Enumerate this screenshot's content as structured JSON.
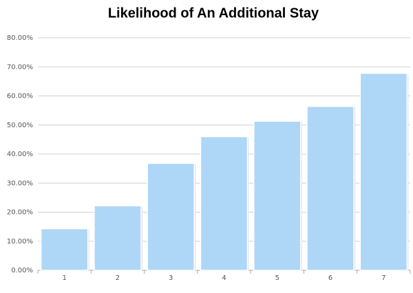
{
  "chart_data": {
    "type": "bar",
    "title": "Likelihood of An Additional Stay",
    "categories": [
      "1",
      "2",
      "3",
      "4",
      "5",
      "6",
      "7"
    ],
    "values": [
      14.3,
      22.2,
      36.8,
      46,
      51.3,
      56.4,
      67.8
    ],
    "color": "#aed6f7",
    "ylim": [
      0,
      80
    ],
    "yticks": [
      {
        "value": 0,
        "label": "0.00%"
      },
      {
        "value": 10,
        "label": "10.00%"
      },
      {
        "value": 20,
        "label": "20.00%"
      },
      {
        "value": 30,
        "label": "30.00%"
      },
      {
        "value": 40,
        "label": "40.00%"
      },
      {
        "value": 50,
        "label": "50.00%"
      },
      {
        "value": 60,
        "label": "60.00%"
      },
      {
        "value": 70,
        "label": "70.00%"
      },
      {
        "value": 80,
        "label": "80.00%"
      }
    ],
    "grid": true
  }
}
